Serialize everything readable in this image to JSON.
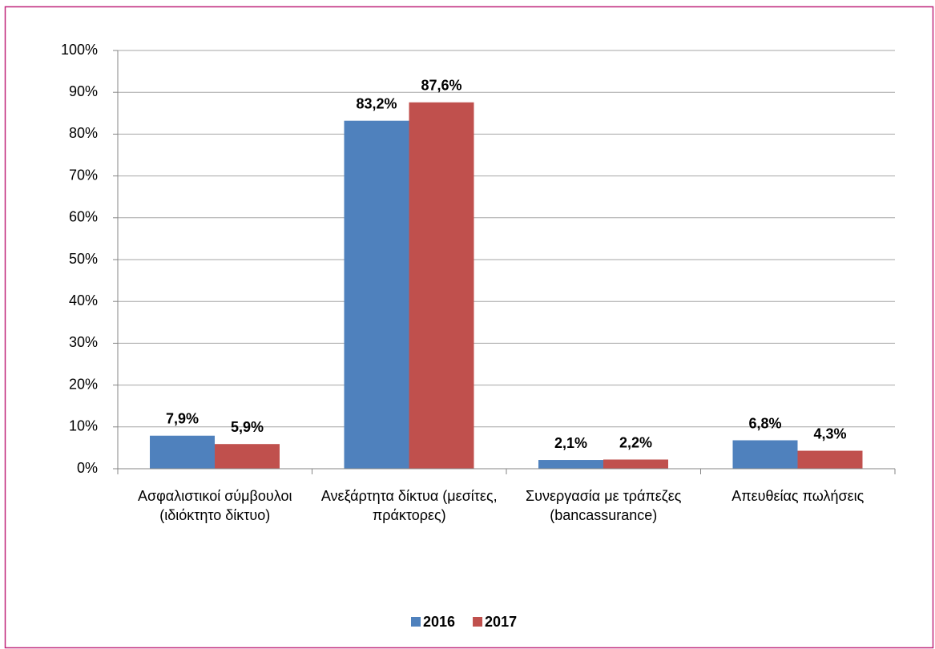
{
  "chart_data": {
    "type": "bar",
    "categories": [
      "Ασφαλιστικοί σύμβουλοι (ιδιόκτητο δίκτυο)",
      "Ανεξάρτητα δίκτυα (μεσίτες, πράκτορες)",
      "Συνεργασία με τράπεζες (bancassurance)",
      "Απευθείας πωλήσεις"
    ],
    "series": [
      {
        "name": "2016",
        "color": "#4f81bd",
        "values": [
          7.9,
          83.2,
          2.1,
          6.8
        ],
        "value_labels": [
          "7,9%",
          "83,2%",
          "2,1%",
          "6,8%"
        ]
      },
      {
        "name": "2017",
        "color": "#c0504d",
        "values": [
          5.9,
          87.6,
          2.2,
          4.3
        ],
        "value_labels": [
          "5,9%",
          "87,6%",
          "2,2%",
          "4,3%"
        ]
      }
    ],
    "ylim": [
      0,
      100
    ],
    "yticks": [
      {
        "value": 0,
        "label": "0%"
      },
      {
        "value": 10,
        "label": "10%"
      },
      {
        "value": 20,
        "label": "20%"
      },
      {
        "value": 30,
        "label": "30%"
      },
      {
        "value": 40,
        "label": "40%"
      },
      {
        "value": 50,
        "label": "50%"
      },
      {
        "value": 60,
        "label": "60%"
      },
      {
        "value": 70,
        "label": "70%"
      },
      {
        "value": 80,
        "label": "80%"
      },
      {
        "value": 90,
        "label": "90%"
      },
      {
        "value": 100,
        "label": "100%"
      }
    ],
    "grid": true,
    "legend": "bottom"
  }
}
